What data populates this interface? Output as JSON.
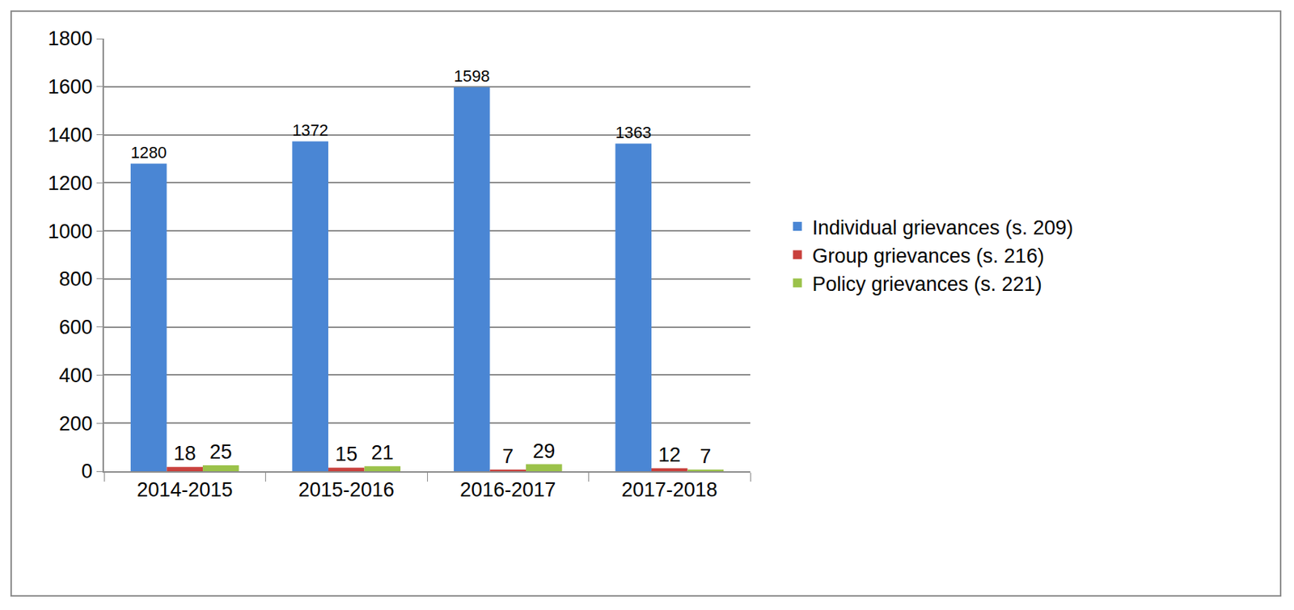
{
  "chart_data": {
    "type": "bar",
    "categories": [
      "2014-2015",
      "2015-2016",
      "2016-2017",
      "2017-2018"
    ],
    "series": [
      {
        "name": "Individual grievances (s. 209)",
        "color": "#4a86d4",
        "values": [
          1280,
          1372,
          1598,
          1363
        ]
      },
      {
        "name": "Group grievances (s. 216)",
        "color": "#c9413d",
        "values": [
          18,
          15,
          7,
          12
        ]
      },
      {
        "name": "Policy grievances (s. 221)",
        "color": "#9bc24a",
        "values": [
          25,
          21,
          29,
          7
        ]
      }
    ],
    "ylim": [
      0,
      1800
    ],
    "yticks": [
      0,
      200,
      400,
      600,
      800,
      1000,
      1200,
      1400,
      1600,
      1800
    ],
    "grid": true,
    "data_labels": true,
    "legend": "right"
  }
}
